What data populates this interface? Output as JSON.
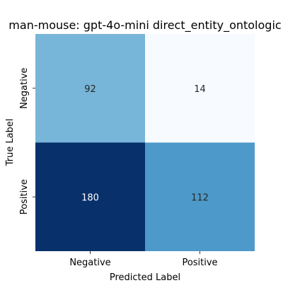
{
  "chart_data": {
    "type": "heatmap",
    "title": "man-mouse: gpt-4o-mini direct_entity_ontologic",
    "xlabel": "Predicted Label",
    "ylabel": "True Label",
    "x_categories": [
      "Negative",
      "Positive"
    ],
    "y_categories": [
      "Negative",
      "Positive"
    ],
    "values": [
      [
        92,
        14
      ],
      [
        180,
        112
      ]
    ],
    "colormap": "Blues",
    "colorbar": false,
    "vmin": 14,
    "vmax": 180
  }
}
